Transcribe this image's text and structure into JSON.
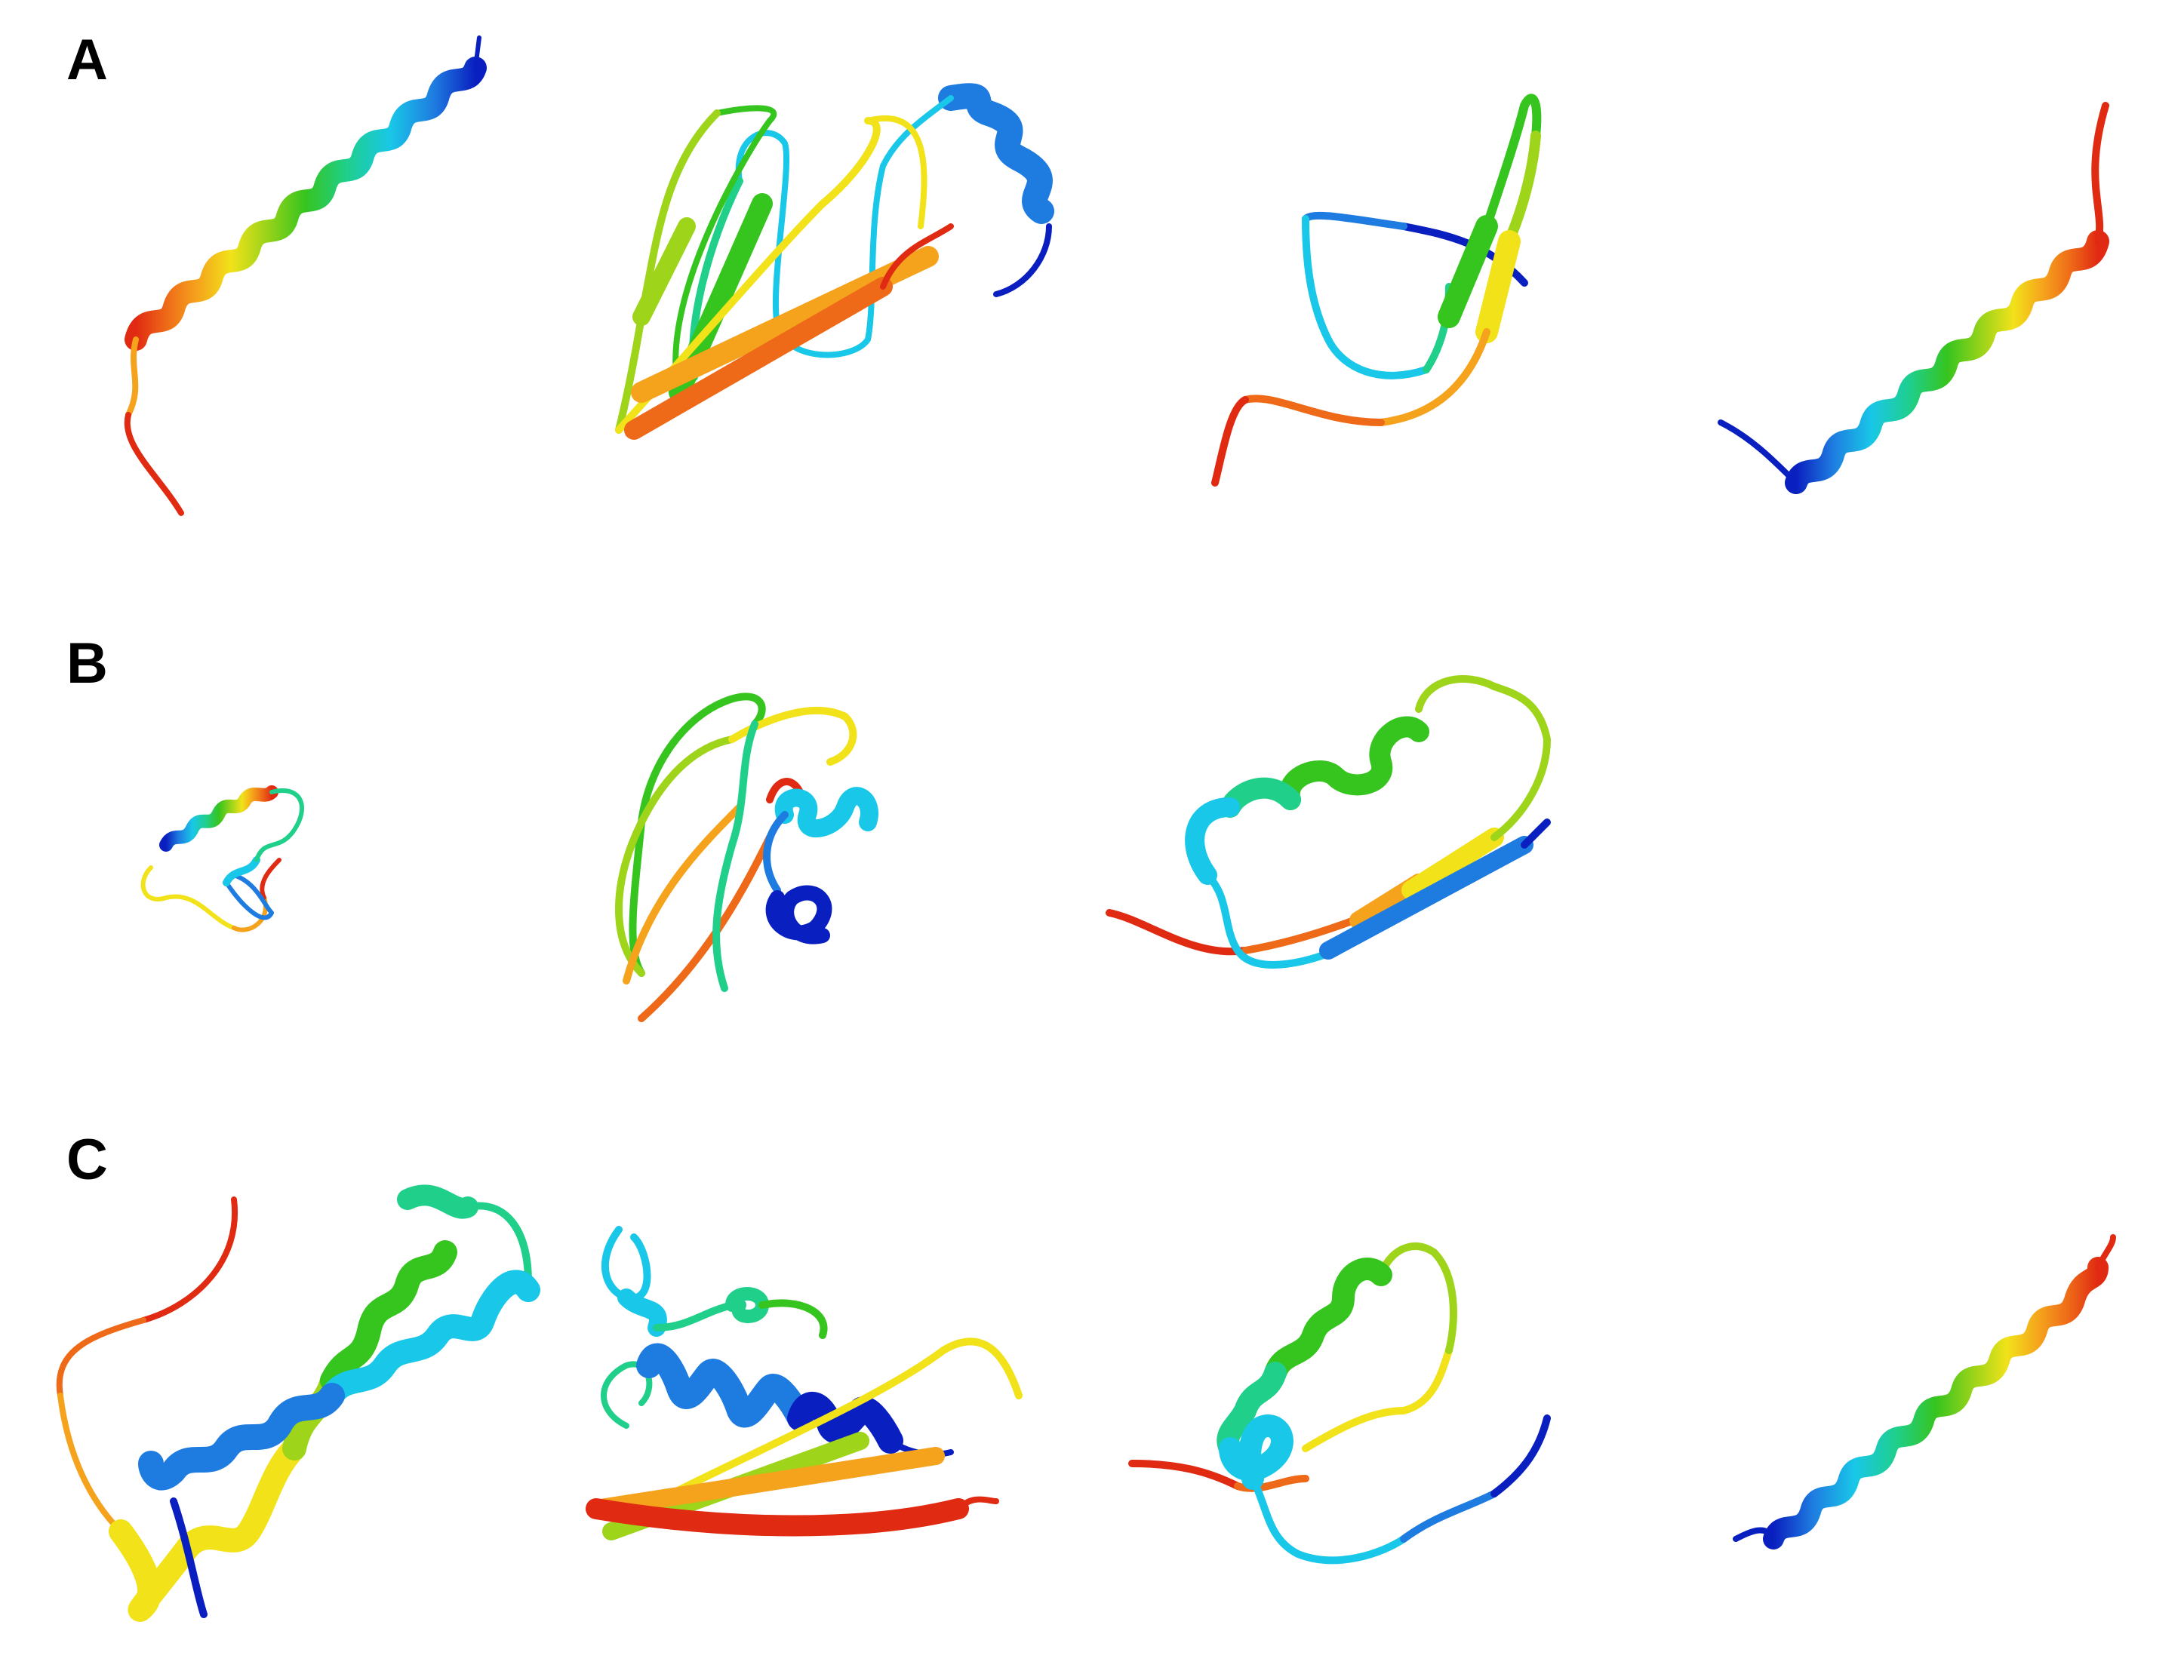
{
  "figure": {
    "background": "#ffffff",
    "label_color": "#000000",
    "rainbow_palette": [
      "#0a1fbf",
      "#1e7be0",
      "#19c7e8",
      "#1fcf8a",
      "#36c41f",
      "#9ed419",
      "#f2e21a",
      "#f5a21c",
      "#ee6a18",
      "#e02a12"
    ],
    "rows": [
      {
        "label": "A",
        "structures": [
          {
            "type": "long alpha helix with C-terminal coil",
            "icon": "protein-ribbon"
          },
          {
            "type": "beta sandwich with N-terminal helix",
            "icon": "protein-ribbon"
          },
          {
            "type": "beta hairpin with loops",
            "icon": "protein-ribbon"
          },
          {
            "type": "long alpha helix with N-terminal coil",
            "icon": "protein-ribbon"
          }
        ]
      },
      {
        "label": "B",
        "structures": [
          {
            "type": "compact helix and coil fold",
            "icon": "protein-ribbon"
          },
          {
            "type": "loop-rich fold with short helices",
            "icon": "protein-ribbon"
          },
          {
            "type": "helix with beta strands and loops",
            "icon": "protein-ribbon"
          }
        ]
      },
      {
        "label": "C",
        "structures": [
          {
            "type": "helical bundle",
            "icon": "protein-ribbon"
          },
          {
            "type": "mixed alpha/beta fold",
            "icon": "protein-ribbon"
          },
          {
            "type": "helix-loop fold",
            "icon": "protein-ribbon"
          },
          {
            "type": "long alpha helix",
            "icon": "protein-ribbon"
          }
        ]
      }
    ]
  }
}
